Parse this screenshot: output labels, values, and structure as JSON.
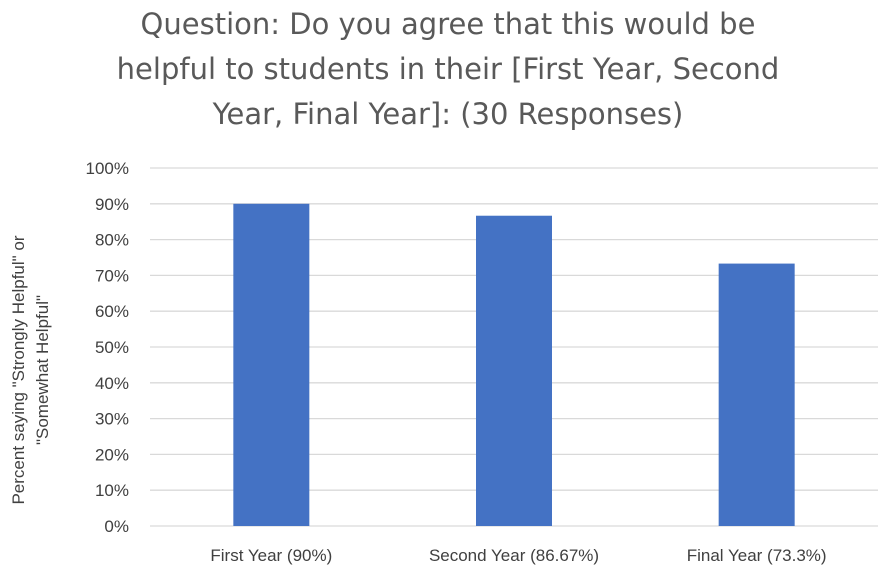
{
  "chart_data": {
    "type": "bar",
    "title_lines": [
      "Question: Do you agree that this would be",
      "helpful to students in their [First Year, Second",
      "Year, Final Year]: (30 Responses)"
    ],
    "ylabel_lines": [
      "Percent saying \"Strongly Helpful\" or",
      "\"Somewhat Helpful\""
    ],
    "xlabel": "",
    "categories": [
      "First Year (90%)",
      "Second Year (86.67%)",
      "Final Year (73.3%)"
    ],
    "values": [
      90,
      86.67,
      73.3
    ],
    "yticks": [
      "0%",
      "10%",
      "20%",
      "30%",
      "40%",
      "50%",
      "60%",
      "70%",
      "80%",
      "90%",
      "100%"
    ],
    "ylim": [
      0,
      100
    ],
    "grid": true,
    "legend": "none",
    "bar_color": "#4472c4"
  }
}
